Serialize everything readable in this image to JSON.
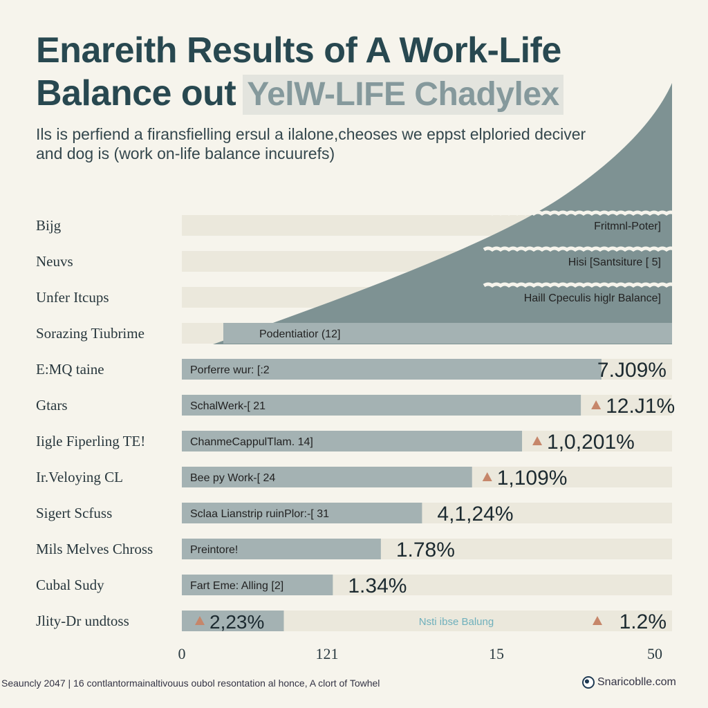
{
  "title": {
    "line1": "Enareith Results of A Work-Life",
    "line2_main": "Balance out",
    "line2_highlight": "YelW-LIFE Chadylеx"
  },
  "subtitle": {
    "line1": "Ils is perfiend a firansfielling ersul a ilalone,cheoses we eppst elploried deciver",
    "line2": "and dog is (work on-life balance incuurefs)"
  },
  "colors": {
    "background": "#f6f4ec",
    "bar": "#a4b2b3",
    "track": "#ebe8dc",
    "area": "#7e9293",
    "title": "#284850",
    "marker": "#c6866a"
  },
  "chart_data": {
    "type": "bar",
    "orientation": "horizontal",
    "categories": [
      "Bijg",
      "Neuvs",
      "Unfer Itcups",
      "Sorazing Tiubrime",
      "E:MQ taine",
      "Gtars",
      "Iigle Fiperling TE!",
      "Ir.Veloying CL",
      "Sigert Scfuss",
      "Mils Melves Chross",
      "Cubal Sudy",
      "Jlity-Dr undtoss"
    ],
    "bar_labels": [
      "Fritmnl-Poter]",
      "Hisi [Santsiture [ 5]",
      "Haill Cpeculis higlr Balance]",
      "Podentiatior (12]",
      "Porferre wur: [:2",
      "SchalWerk-[ 21",
      "ChanmeCappulTlam. 14]",
      "Bee py Work-[ 24",
      "Sclaa Lianstrip ruinPlor:-[ 31",
      "Preintore!",
      "Fart Eme: Alling [2]",
      ""
    ],
    "value_labels": [
      "",
      "",
      "",
      "",
      "7.J09%",
      "12.J1%",
      "1,0,201%",
      "1,109%",
      "4,1,24%",
      "1.78%",
      "1.34%",
      "2,23%"
    ],
    "values": [
      50,
      50,
      50,
      50,
      42.8,
      40.7,
      34.7,
      29.6,
      24.5,
      20.3,
      15.4,
      10.4
    ],
    "marker": [
      false,
      false,
      false,
      false,
      false,
      true,
      true,
      true,
      false,
      false,
      false,
      true
    ],
    "last_row_extra": {
      "center_label": "Nsti ibse Balung",
      "right_label": "1.2%"
    },
    "x_tick_labels": [
      "0",
      "121",
      "15",
      "50"
    ],
    "xlim": [
      0,
      50
    ],
    "title": "",
    "xlabel": "",
    "ylabel": ""
  },
  "footer": {
    "left": "Seauncly 2047  |  16  contlantormainaltivouus oubol resontation al honce,  A clort of Towhel",
    "right": "Snaricoblle.com"
  }
}
